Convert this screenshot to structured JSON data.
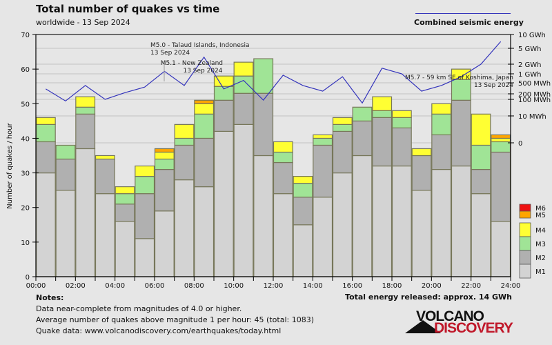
{
  "header": {
    "title": "Total number of quakes vs time",
    "subtitle": "worldwide - 13 Sep 2024",
    "energy_legend_label": "Combined seismic energy"
  },
  "notes": {
    "heading": "Notes:",
    "line1": "Data near-complete from magnitudes of 4.0 or higher.",
    "line2": "Average number of quakes above magnitude 1 per hour: 45 (total: 1083)",
    "line3": "Quake data: www.volcanodiscovery.com/earthquakes/today.html"
  },
  "total_energy": "Total energy released: approx. 14 GWh",
  "logo": {
    "line1": "VOLCANO",
    "line2": "DISCOVERY"
  },
  "chart_data": {
    "type": "bar",
    "stacked": true,
    "title": "Total number of quakes vs time",
    "subtitle": "worldwide - 13 Sep 2024",
    "xlabel": "",
    "ylabel": "Number of quakes / hour",
    "ylim": [
      0,
      70
    ],
    "yticks": [
      0,
      10,
      20,
      30,
      40,
      50,
      60,
      70
    ],
    "xlim": [
      0,
      24
    ],
    "xtick_labels": [
      "00:00",
      "02:00",
      "04:00",
      "06:00",
      "08:00",
      "10:00",
      "12:00",
      "14:00",
      "16:00",
      "18:00",
      "20:00",
      "22:00",
      "24:00"
    ],
    "categories": [
      "00",
      "01",
      "02",
      "03",
      "04",
      "05",
      "06",
      "07",
      "08",
      "09",
      "10",
      "11",
      "12",
      "13",
      "14",
      "15",
      "16",
      "17",
      "18",
      "19",
      "20",
      "21",
      "22",
      "23"
    ],
    "series": [
      {
        "name": "M1",
        "color": "#d3d3d3",
        "values": [
          30,
          25,
          37,
          24,
          16,
          11,
          19,
          28,
          26,
          42,
          44,
          35,
          24,
          15,
          23,
          30,
          35,
          32,
          32,
          25,
          31,
          32,
          24,
          16
        ]
      },
      {
        "name": "M2",
        "color": "#b0b0b0",
        "values": [
          9,
          9,
          10,
          10,
          5,
          13,
          12,
          10,
          14,
          9,
          9,
          18,
          9,
          8,
          15,
          12,
          10,
          14,
          11,
          10,
          10,
          19,
          7,
          20
        ]
      },
      {
        "name": "M3",
        "color": "#a0e496",
        "values": [
          5,
          4,
          2,
          0,
          3,
          5,
          3,
          2,
          7,
          4,
          5,
          10,
          3,
          4,
          2,
          2,
          4,
          2,
          3,
          0,
          6,
          6,
          7,
          3
        ]
      },
      {
        "name": "M4",
        "color": "#ffff33",
        "values": [
          2,
          0,
          3,
          1,
          2,
          3,
          2,
          4,
          3,
          3,
          4,
          0,
          3,
          2,
          1,
          2,
          0,
          4,
          2,
          2,
          3,
          3,
          9,
          1
        ]
      },
      {
        "name": "M5",
        "color": "#ffa500",
        "values": [
          0,
          0,
          0,
          0,
          0,
          0,
          1,
          0,
          1,
          0,
          0,
          0,
          0,
          0,
          0,
          0,
          0,
          0,
          0,
          0,
          0,
          0,
          0,
          1
        ]
      },
      {
        "name": "M6",
        "color": "#ee1111",
        "values": [
          0,
          0,
          0,
          0,
          0,
          0,
          0,
          0,
          0,
          0,
          0,
          0,
          0,
          0,
          0,
          0,
          0,
          0,
          0,
          0,
          0,
          0,
          0,
          0
        ]
      }
    ],
    "legend": {
      "placement": "bottom-right",
      "entries": [
        "M6",
        "M5",
        "M4",
        "M3",
        "M2",
        "M1"
      ]
    },
    "energy_axis": {
      "label": "Combined seismic energy",
      "color": "#3333bb",
      "scale": "log",
      "tick_labels": [
        "10 GWh",
        "5 GWh",
        "2 GWh",
        "1 GWh",
        "500 MWh",
        "200 MWh",
        "100 MWh",
        "10 MWh",
        "0"
      ],
      "tick_values_mwh": [
        10000,
        5000,
        2000,
        1000,
        500,
        200,
        100,
        10,
        0
      ]
    },
    "energy_series_mwh": [
      300,
      80,
      400,
      100,
      220,
      350,
      1200,
      400,
      3000,
      300,
      600,
      90,
      900,
      400,
      250,
      800,
      60,
      1500,
      1000,
      250,
      400,
      800,
      2000,
      7000
    ],
    "annotations": [
      {
        "hour": 6.5,
        "text": "M5.0 - Talaud Islands, Indonesia",
        "date": "13 Sep 2024"
      },
      {
        "hour": 8.5,
        "text": "M5.1 - New Zealand",
        "date": "13 Sep 2024"
      },
      {
        "hour": 23.5,
        "text": "M5.7 - 59 km SE of Koshima, Japan",
        "date": "13 Sep 2024"
      }
    ],
    "grid": true
  }
}
